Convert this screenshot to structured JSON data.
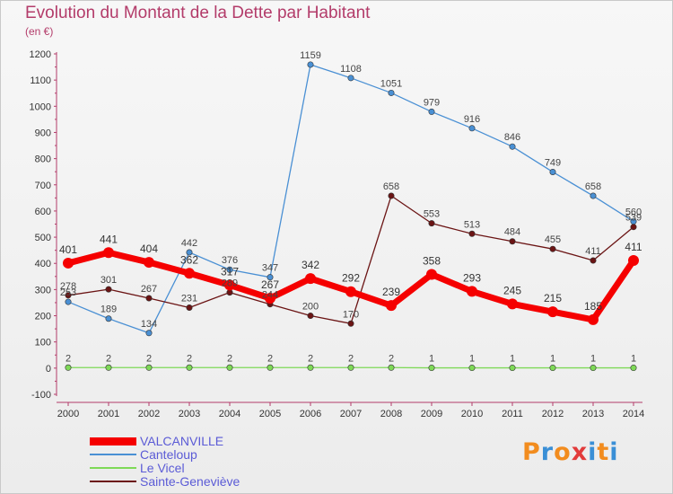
{
  "title": "Evolution du Montant de la Dette par Habitant",
  "subtitle": "(en €)",
  "logo": {
    "text": "Proxiti",
    "letter_colors": [
      "#f28c1e",
      "#3a8fd6",
      "#f28c1e",
      "#e23b3b",
      "#3a8fd6",
      "#f28c1e",
      "#3a8fd6"
    ]
  },
  "chart_data": {
    "type": "line",
    "x": [
      "2000",
      "2001",
      "2002",
      "2003",
      "2004",
      "2005",
      "2006",
      "2007",
      "2008",
      "2009",
      "2010",
      "2011",
      "2012",
      "2013",
      "2014"
    ],
    "ylim": [
      -100,
      1200
    ],
    "yticks": [
      -100,
      0,
      100,
      200,
      300,
      400,
      500,
      600,
      700,
      800,
      900,
      1000,
      1100,
      1200
    ],
    "grid": false,
    "legend_position": "bottom-left",
    "series": [
      {
        "name": "VALCANVILLE",
        "color": "#f50000",
        "style": "thick",
        "values": [
          401,
          441,
          404,
          362,
          317,
          267,
          342,
          292,
          239,
          358,
          293,
          245,
          215,
          185,
          411
        ]
      },
      {
        "name": "Canteloup",
        "color": "#4a90d4",
        "style": "thin",
        "values": [
          253,
          189,
          134,
          442,
          376,
          347,
          1159,
          1108,
          1051,
          979,
          916,
          846,
          749,
          658,
          560
        ]
      },
      {
        "name": "Le Vicel",
        "color": "#7ed957",
        "style": "thin",
        "values": [
          2,
          2,
          2,
          2,
          2,
          2,
          2,
          2,
          2,
          1,
          1,
          1,
          1,
          1,
          1
        ]
      },
      {
        "name": "Sainte-Geneviève",
        "color": "#6b1414",
        "style": "thin",
        "values": [
          278,
          301,
          267,
          231,
          289,
          244,
          200,
          170,
          658,
          553,
          513,
          484,
          455,
          411,
          539
        ]
      }
    ]
  }
}
